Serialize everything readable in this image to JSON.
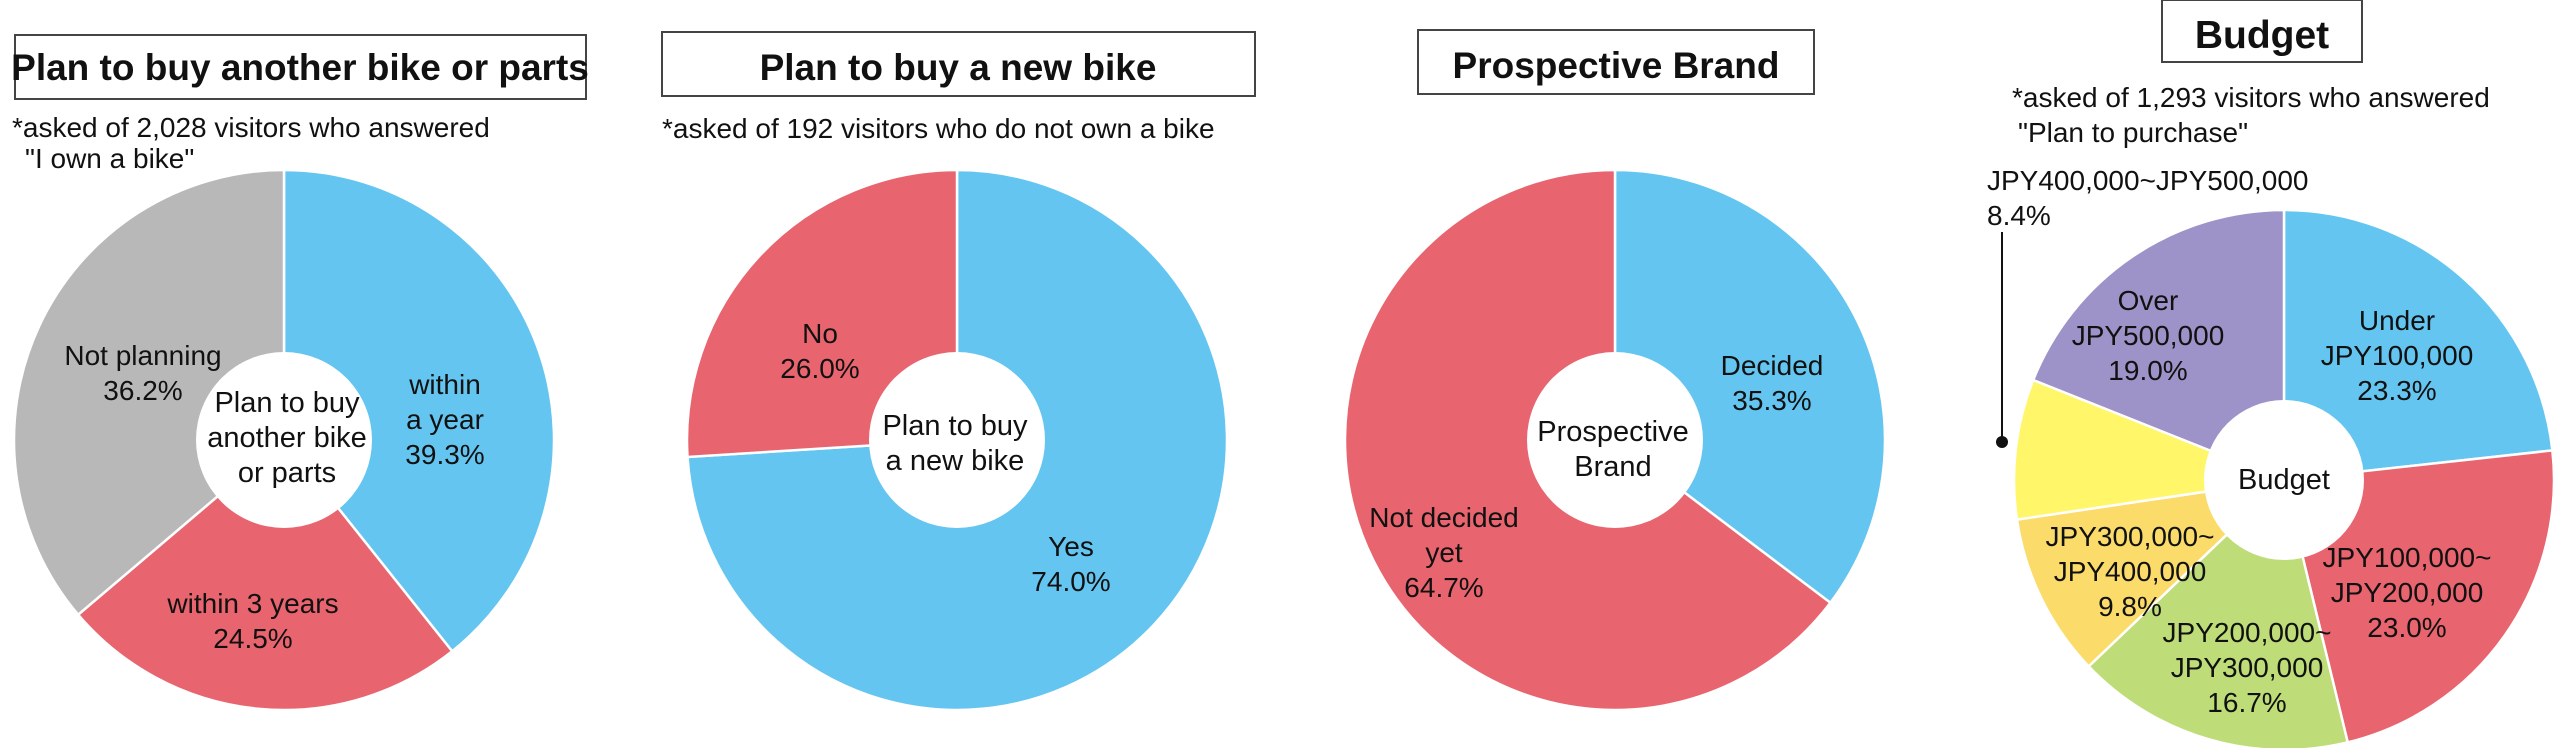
{
  "chart_data": [
    {
      "type": "pie",
      "title": "Plan to buy another bike or parts",
      "note": [
        "*asked of 2,028 visitors who answered",
        "\"I own a bike\""
      ],
      "center_label": [
        "Plan to buy",
        "another bike",
        "or parts"
      ],
      "slices": [
        {
          "label": [
            "within",
            "a year"
          ],
          "value": 39.3,
          "value_label": "39.3%",
          "color": "#64C5F0"
        },
        {
          "label": [
            "within 3 years"
          ],
          "value": 24.5,
          "value_label": "24.5%",
          "color": "#E8646E"
        },
        {
          "label": [
            "Not planning"
          ],
          "value": 36.2,
          "value_label": "36.2%",
          "color": "#B8B8B8"
        }
      ]
    },
    {
      "type": "pie",
      "title": "Plan to buy a new bike",
      "note": [
        "*asked of 192 visitors who do not own a bike"
      ],
      "center_label": [
        "Plan to buy",
        "a new bike"
      ],
      "slices": [
        {
          "label": [
            "Yes"
          ],
          "value": 74.0,
          "value_label": "74.0%",
          "color": "#64C5F0"
        },
        {
          "label": [
            "No"
          ],
          "value": 26.0,
          "value_label": "26.0%",
          "color": "#E8646E"
        }
      ]
    },
    {
      "type": "pie",
      "title": "Prospective Brand",
      "note": [],
      "center_label": [
        "Prospective",
        "Brand"
      ],
      "slices": [
        {
          "label": [
            "Decided"
          ],
          "value": 35.3,
          "value_label": "35.3%",
          "color": "#64C5F0"
        },
        {
          "label": [
            "Not decided",
            "yet"
          ],
          "value": 64.7,
          "value_label": "64.7%",
          "color": "#E8646E"
        }
      ]
    },
    {
      "type": "pie",
      "title": "Budget",
      "note": [
        "*asked of 1,293 visitors who answered",
        "\"Plan to purchase\""
      ],
      "center_label": [
        "Budget"
      ],
      "slices": [
        {
          "label": [
            "Under",
            "JPY100,000"
          ],
          "value": 23.3,
          "value_label": "23.3%",
          "color": "#64C5F0"
        },
        {
          "label": [
            "JPY100,000~",
            "JPY200,000"
          ],
          "value": 23.0,
          "value_label": "23.0%",
          "color": "#E8646E"
        },
        {
          "label": [
            "JPY200,000~",
            "JPY300,000"
          ],
          "value": 16.7,
          "value_label": "16.7%",
          "color": "#BEDD78"
        },
        {
          "label": [
            "JPY300,000~",
            "JPY400,000"
          ],
          "value": 9.8,
          "value_label": "9.8%",
          "color": "#FBDC6A"
        },
        {
          "label": [
            "JPY400,000~JPY500,000"
          ],
          "value": 8.4,
          "value_label": "8.4%",
          "color": "#FFF66A"
        },
        {
          "label": [
            "Over",
            "JPY500,000"
          ],
          "value": 19.0,
          "value_label": "19.0%",
          "color": "#9E93C8"
        }
      ]
    }
  ]
}
